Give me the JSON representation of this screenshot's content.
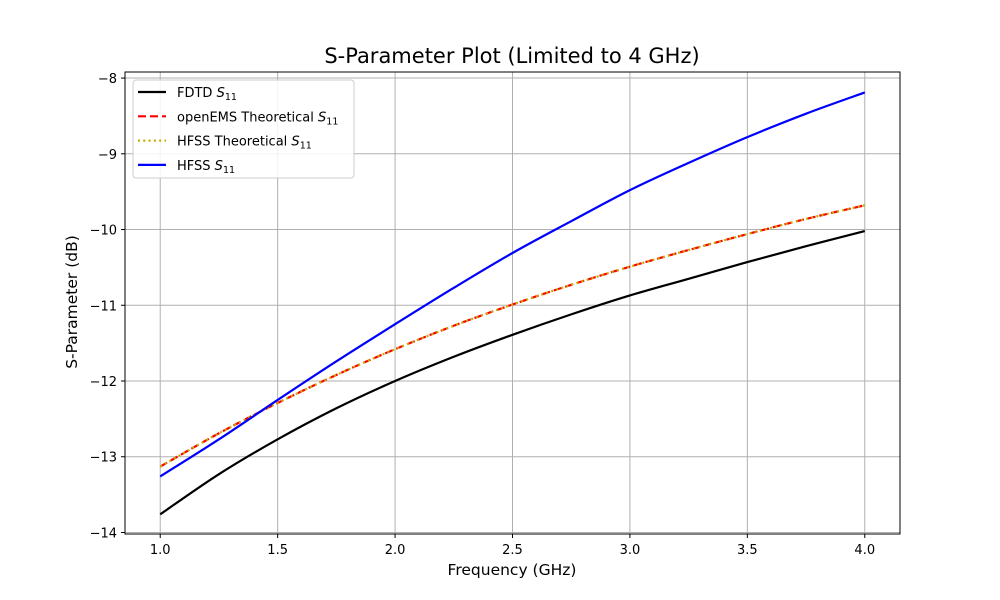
{
  "chart_data": {
    "type": "line",
    "title": "S-Parameter Plot (Limited to 4 GHz)",
    "xlabel": "Frequency (GHz)",
    "ylabel": "S-Parameter (dB)",
    "xlim": [
      0.85,
      4.15
    ],
    "ylim": [
      -14.02,
      -7.92
    ],
    "xticks": [
      1.0,
      1.5,
      2.0,
      2.5,
      3.0,
      3.5,
      4.0
    ],
    "xtick_labels": [
      "1.0",
      "1.5",
      "2.0",
      "2.5",
      "3.0",
      "3.5",
      "4.0"
    ],
    "yticks": [
      -14,
      -13,
      -12,
      -11,
      -10,
      -9,
      -8
    ],
    "ytick_labels": [
      "−14",
      "−13",
      "−12",
      "−11",
      "−10",
      "−9",
      "−8"
    ],
    "grid": true,
    "legend_position": "upper-left",
    "x": [
      1.0,
      1.25,
      1.5,
      1.75,
      2.0,
      2.25,
      2.5,
      2.75,
      3.0,
      3.25,
      3.5,
      3.75,
      4.0
    ],
    "series": [
      {
        "name": "FDTD",
        "subscript": "11",
        "color": "#000000",
        "style": "solid",
        "values": [
          -13.76,
          -13.23,
          -12.77,
          -12.36,
          -12.0,
          -11.68,
          -11.39,
          -11.12,
          -10.87,
          -10.65,
          -10.43,
          -10.22,
          -10.02
        ]
      },
      {
        "name": "openEMS Theoretical",
        "subscript": "11",
        "color": "#ff0000",
        "style": "dashed",
        "values": [
          -13.13,
          -12.69,
          -12.29,
          -11.92,
          -11.58,
          -11.27,
          -10.99,
          -10.73,
          -10.49,
          -10.27,
          -10.06,
          -9.86,
          -9.68
        ]
      },
      {
        "name": "HFSS Theoretical",
        "subscript": "11",
        "color": "#ccaa00",
        "style": "dotted",
        "values": [
          -13.13,
          -12.69,
          -12.29,
          -11.92,
          -11.58,
          -11.27,
          -10.99,
          -10.73,
          -10.49,
          -10.27,
          -10.06,
          -9.86,
          -9.68
        ]
      },
      {
        "name": "HFSS",
        "subscript": "11",
        "color": "#0000ff",
        "style": "solid",
        "values": [
          -13.26,
          -12.77,
          -12.25,
          -11.74,
          -11.25,
          -10.77,
          -10.31,
          -9.89,
          -9.48,
          -9.12,
          -8.78,
          -8.47,
          -8.19
        ]
      }
    ]
  }
}
